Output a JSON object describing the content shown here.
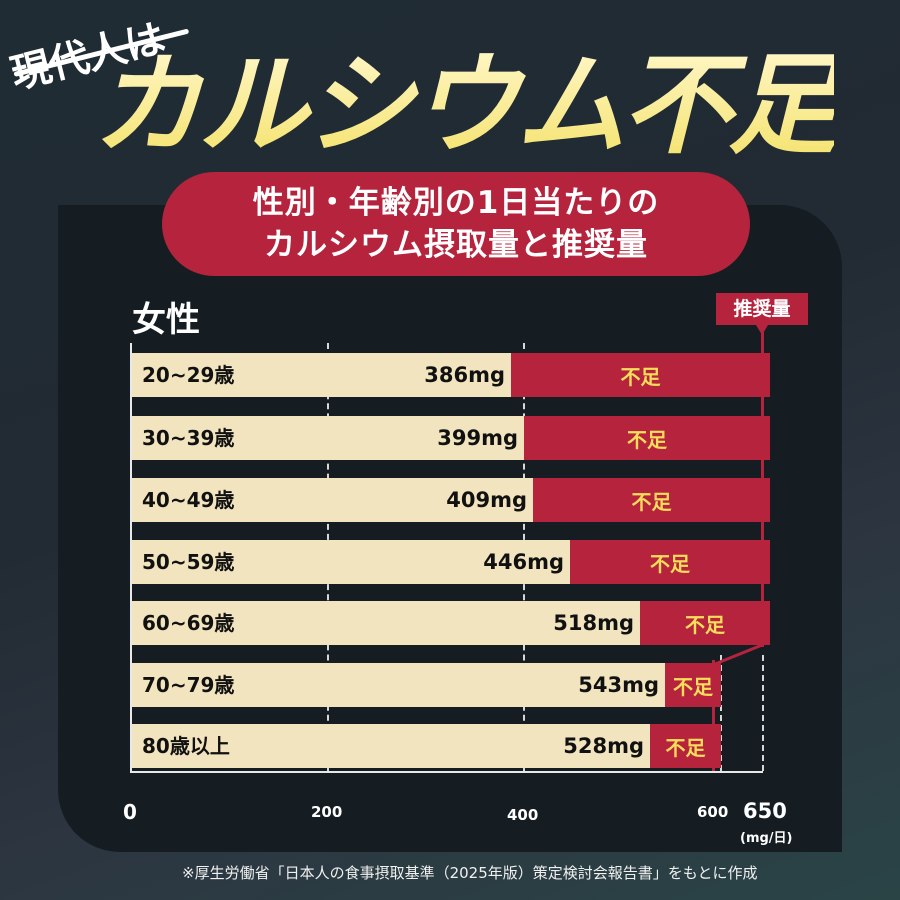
{
  "header": {
    "subtitle": "現代人は",
    "title": "カルシウム不足"
  },
  "banner": {
    "line1": "性別・年齢別の1日当たりの",
    "line2": "カルシウム摂取量と推奨量"
  },
  "chart_data": {
    "type": "bar",
    "title": "性別・年齢別の1日当たりのカルシウム摂取量と推奨量",
    "group": "女性",
    "categories": [
      "20~29歳",
      "30~39歳",
      "40~49歳",
      "50~59歳",
      "60~69歳",
      "70~79歳",
      "80歳以上"
    ],
    "series": [
      {
        "name": "摂取量",
        "values": [
          386,
          399,
          409,
          446,
          518,
          543,
          528
        ],
        "color": "#f1e4be"
      },
      {
        "name": "推奨量",
        "values": [
          650,
          650,
          650,
          650,
          650,
          600,
          600
        ],
        "color": "#b5243c"
      }
    ],
    "value_labels": [
      "386mg",
      "399mg",
      "409mg",
      "446mg",
      "518mg",
      "543mg",
      "528mg"
    ],
    "shortfall_label": "不足",
    "xlabel": "(mg/日)",
    "xticks": [
      "0",
      "200",
      "400",
      "600",
      "650"
    ],
    "xlim": [
      0,
      650
    ],
    "recommendation_label": "推奨量",
    "orientation": "horizontal"
  },
  "axis": {
    "t0": "0",
    "t200": "200",
    "t400": "400",
    "t600": "600",
    "t650": "650",
    "unit": "(mg/日)"
  },
  "source_note": "※厚生労働省「日本人の食事摂取基準（2025年版）策定検討会報告書」をもとに作成",
  "colors": {
    "accent_red": "#b5243c",
    "bar_cream": "#f1e4be",
    "shortfall_text": "#f9de5c",
    "title_yellow": "#f7e98a"
  }
}
